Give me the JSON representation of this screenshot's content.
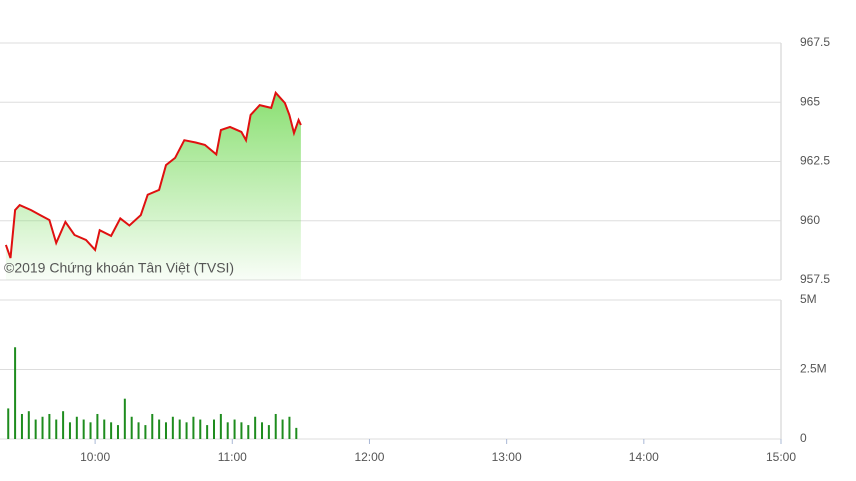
{
  "chart_data": [
    {
      "type": "area",
      "annotations": [
        "©2019 Chứng khoán Tân Việt (TVSI)"
      ],
      "x": [
        561,
        563,
        565,
        567,
        572,
        576,
        580,
        583,
        587,
        591,
        596,
        600,
        602,
        607,
        611,
        615,
        620,
        623,
        628,
        631,
        635,
        639,
        644,
        648,
        653,
        655,
        659,
        664,
        666,
        668,
        672,
        677,
        679,
        683,
        685,
        687,
        689,
        690
      ],
      "values": [
        958.98,
        958.43,
        960.45,
        960.66,
        960.45,
        960.24,
        960.03,
        959.06,
        959.95,
        959.4,
        959.19,
        958.77,
        959.6,
        959.36,
        960.1,
        959.8,
        960.24,
        961.1,
        961.3,
        962.35,
        962.65,
        963.4,
        963.3,
        963.2,
        962.8,
        963.83,
        963.96,
        963.75,
        963.4,
        964.46,
        964.88,
        964.76,
        965.4,
        964.97,
        964.46,
        963.7,
        964.25,
        964.04
      ],
      "color": "#e01010",
      "fill_color": "#7ddc62",
      "xlim": [
        558.4,
        900
      ],
      "ylim": [
        957.5,
        967.5
      ],
      "yticks": [
        957.5,
        960,
        962.5,
        965,
        967.5
      ],
      "grid": true
    },
    {
      "type": "bar",
      "x": [
        562,
        565,
        568,
        571,
        574,
        577,
        580,
        583,
        586,
        589,
        592,
        595,
        598,
        601,
        604,
        607,
        610,
        613,
        616,
        619,
        622,
        625,
        628,
        631,
        634,
        637,
        640,
        643,
        646,
        649,
        652,
        655,
        658,
        661,
        664,
        667,
        670,
        673,
        676,
        679,
        682,
        685,
        688
      ],
      "values": [
        1100000,
        3300000,
        900000,
        1000000,
        700000,
        800000,
        900000,
        700000,
        1000000,
        600000,
        800000,
        700000,
        600000,
        900000,
        700000,
        600000,
        500000,
        1450000,
        800000,
        600000,
        500000,
        900000,
        700000,
        600000,
        800000,
        700000,
        600000,
        800000,
        700000,
        500000,
        700000,
        900000,
        600000,
        700000,
        600000,
        500000,
        800000,
        600000,
        500000,
        900000,
        700000,
        800000,
        400000
      ],
      "color": "#1e8c1e",
      "xlim": [
        558.4,
        900
      ],
      "ylim": [
        0,
        5000000
      ],
      "yticks": [
        0,
        {
          "value": 2500000,
          "label": "2.5M"
        },
        {
          "value": 5000000,
          "label": "5M"
        }
      ],
      "xticks": [
        {
          "value": 600,
          "label": "10:00"
        },
        {
          "value": 660,
          "label": "11:00"
        },
        {
          "value": 720,
          "label": "12:00"
        },
        {
          "value": 780,
          "label": "13:00"
        },
        {
          "value": 840,
          "label": "14:00"
        },
        {
          "value": 900,
          "label": "15:00"
        }
      ],
      "grid": true
    }
  ]
}
